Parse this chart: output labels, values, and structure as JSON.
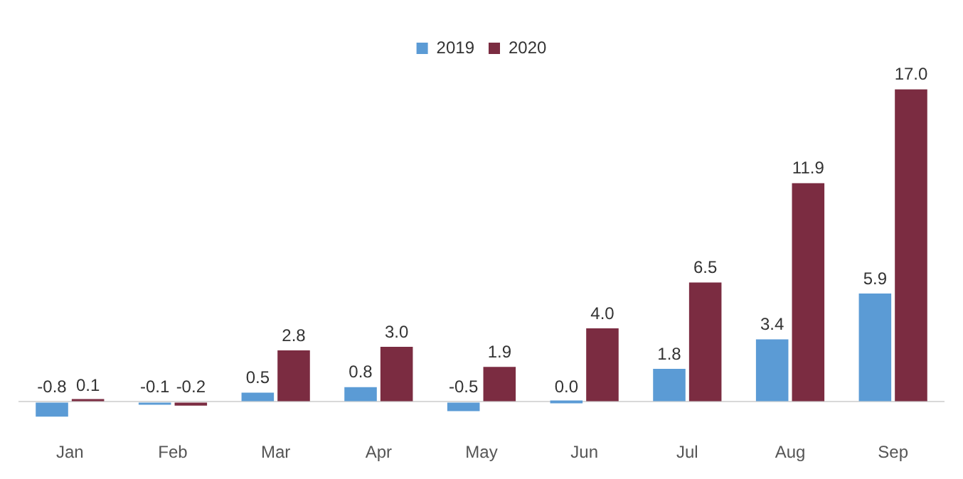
{
  "chart_data": {
    "type": "bar",
    "categories": [
      "Jan",
      "Feb",
      "Mar",
      "Apr",
      "May",
      "Jun",
      "Jul",
      "Aug",
      "Sep"
    ],
    "series": [
      {
        "name": "2019",
        "color": "#5b9bd5",
        "values": [
          -0.8,
          -0.1,
          0.5,
          0.8,
          -0.5,
          0.0,
          1.8,
          3.4,
          5.9
        ],
        "value_labels": [
          "-0.8",
          "-0.1",
          "0.5",
          "0.8",
          "-0.5",
          "0.0",
          "1.8",
          "3.4",
          "5.9"
        ]
      },
      {
        "name": "2020",
        "color": "#7b2c41",
        "values": [
          0.1,
          -0.2,
          2.8,
          3.0,
          1.9,
          4.0,
          6.5,
          11.9,
          17.0
        ],
        "value_labels": [
          "0.1",
          "-0.2",
          "2.8",
          "3.0",
          "1.9",
          "4.0",
          "6.5",
          "11.9",
          "17.0"
        ]
      }
    ],
    "legend": "top",
    "grid": false
  }
}
